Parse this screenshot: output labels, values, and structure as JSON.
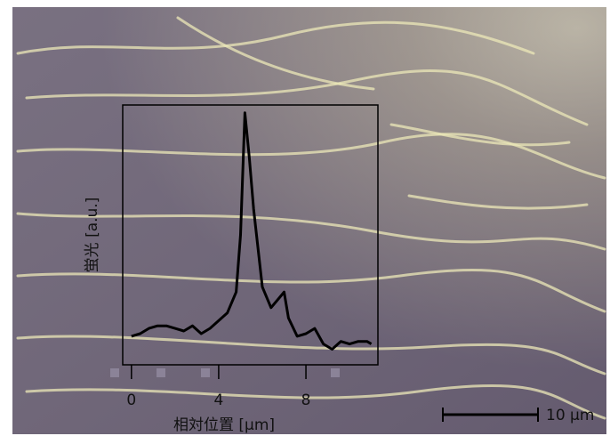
{
  "chart_data": {
    "type": "line",
    "x_label": "相対位置 [μm]",
    "y_label": "蛍光 [a.u.]",
    "scale_bar_label": "10 μm",
    "x": [
      0,
      0.4,
      0.8,
      1.2,
      1.6,
      2.0,
      2.4,
      2.8,
      3.2,
      3.6,
      4.0,
      4.4,
      4.8,
      5.0,
      5.2,
      5.4,
      5.6,
      5.8,
      6.0,
      6.4,
      6.8,
      7.0,
      7.2,
      7.6,
      8.0,
      8.4,
      8.8,
      9.2,
      9.6,
      10.0,
      10.4,
      10.8,
      11.0
    ],
    "values": [
      11,
      12,
      14,
      15,
      15,
      14,
      13,
      15,
      12,
      14,
      17,
      20,
      28,
      50,
      97,
      80,
      60,
      45,
      30,
      22,
      26,
      28,
      18,
      11,
      12,
      14,
      8,
      6,
      9,
      8,
      9,
      9,
      8
    ],
    "color": "#000000",
    "xlim": [
      -0.4,
      11.3
    ],
    "ylim": [
      0,
      100
    ],
    "xticks": [
      0,
      4,
      8
    ]
  }
}
